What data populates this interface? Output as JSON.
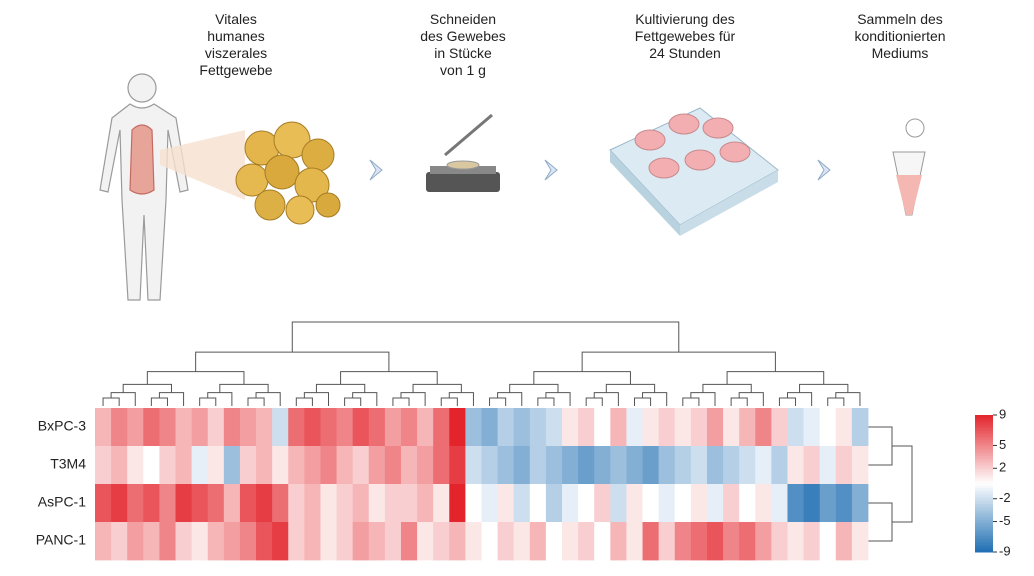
{
  "steps": [
    {
      "lines": [
        "Vitales",
        "humanes",
        "viszerales",
        "Fettgewebe"
      ]
    },
    {
      "lines": [
        "Schneiden",
        "des Gewebes",
        "in Stücke",
        "von 1 g"
      ]
    },
    {
      "lines": [
        "Kultivierung des",
        "Fettgewebes für",
        "24 Stunden"
      ]
    },
    {
      "lines": [
        "Sammeln des",
        "konditionierten",
        "Mediums"
      ]
    }
  ],
  "heatmap": {
    "rows": [
      "BxPC-3",
      "T3M4",
      "AsPC-1",
      "PANC-1"
    ],
    "values": [
      [
        3,
        5,
        4,
        6,
        5,
        3,
        4,
        2,
        5,
        4,
        3,
        -2,
        6,
        7,
        6,
        5,
        7,
        6,
        4,
        5,
        3,
        6,
        9,
        -4,
        -5,
        -3,
        -4,
        -3,
        -2,
        1,
        2,
        0,
        3,
        -1,
        1,
        2,
        1,
        2,
        4,
        1,
        3,
        5,
        2,
        -2,
        -1,
        0,
        1,
        -3
      ],
      [
        2,
        3,
        1,
        0,
        2,
        3,
        -1,
        1,
        -4,
        2,
        3,
        1,
        3,
        4,
        5,
        3,
        2,
        4,
        5,
        3,
        4,
        6,
        8,
        -2,
        -3,
        -4,
        -5,
        -3,
        -4,
        -5,
        -6,
        -5,
        -4,
        -5,
        -6,
        -4,
        -3,
        -2,
        -4,
        -3,
        -2,
        -1,
        -3,
        1,
        2,
        -1,
        2,
        1
      ],
      [
        7,
        8,
        6,
        7,
        5,
        8,
        7,
        6,
        3,
        7,
        8,
        6,
        2,
        3,
        1,
        2,
        3,
        1,
        2,
        2,
        3,
        1,
        9,
        0,
        -1,
        1,
        -2,
        0,
        -3,
        -1,
        0,
        2,
        -2,
        1,
        0,
        -1,
        0,
        1,
        -1,
        2,
        0,
        1,
        -1,
        -7,
        -8,
        -6,
        -7,
        -5
      ],
      [
        3,
        2,
        4,
        3,
        5,
        2,
        1,
        3,
        4,
        5,
        7,
        8,
        2,
        3,
        1,
        2,
        4,
        3,
        2,
        5,
        1,
        2,
        3,
        1,
        0,
        2,
        1,
        3,
        0,
        1,
        2,
        0,
        3,
        1,
        6,
        2,
        5,
        6,
        7,
        5,
        6,
        4,
        2,
        1,
        2,
        0,
        3,
        1
      ]
    ],
    "clim": [
      -9,
      9
    ],
    "colorbar_ticks": [
      9,
      5,
      2,
      -2,
      -5,
      -9
    ],
    "low_color": "#1f6fb3",
    "mid_color": "#ffffff",
    "high_color": "#e3242b"
  }
}
